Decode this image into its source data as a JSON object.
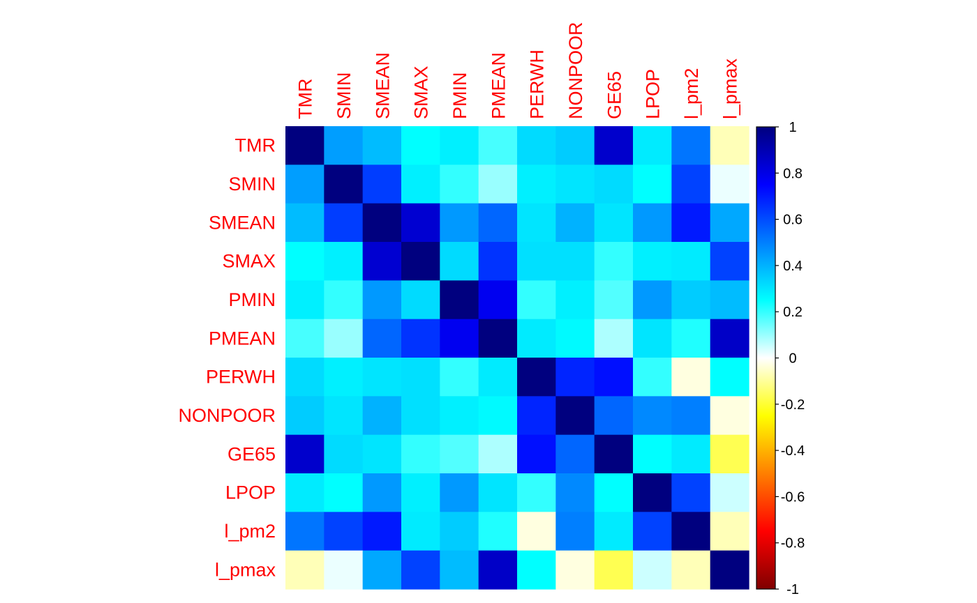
{
  "chart_data": {
    "type": "heatmap",
    "title": "",
    "xlabel": "",
    "ylabel": "",
    "variables": [
      "TMR",
      "SMIN",
      "SMEAN",
      "SMAX",
      "PMIN",
      "PMEAN",
      "PERWH",
      "NONPOOR",
      "GE65",
      "LPOP",
      "l_pm2",
      "l_pmax"
    ],
    "matrix": [
      [
        1.0,
        0.44,
        0.38,
        0.25,
        0.28,
        0.18,
        0.32,
        0.35,
        0.85,
        0.29,
        0.52,
        -0.07
      ],
      [
        0.44,
        1.0,
        0.63,
        0.28,
        0.2,
        0.1,
        0.28,
        0.3,
        0.32,
        0.25,
        0.62,
        0.02
      ],
      [
        0.38,
        0.63,
        1.0,
        0.84,
        0.45,
        0.55,
        0.3,
        0.4,
        0.3,
        0.45,
        0.7,
        0.42
      ],
      [
        0.25,
        0.28,
        0.84,
        1.0,
        0.32,
        0.65,
        0.31,
        0.31,
        0.2,
        0.28,
        0.29,
        0.62
      ],
      [
        0.28,
        0.2,
        0.45,
        0.32,
        1.0,
        0.78,
        0.2,
        0.28,
        0.17,
        0.45,
        0.35,
        0.38
      ],
      [
        0.18,
        0.1,
        0.55,
        0.65,
        0.78,
        1.0,
        0.29,
        0.26,
        0.08,
        0.3,
        0.22,
        0.86
      ],
      [
        0.32,
        0.28,
        0.3,
        0.31,
        0.2,
        0.29,
        1.0,
        0.68,
        0.72,
        0.2,
        -0.03,
        0.25
      ],
      [
        0.35,
        0.3,
        0.4,
        0.31,
        0.28,
        0.26,
        0.68,
        1.0,
        0.55,
        0.48,
        0.5,
        -0.03
      ],
      [
        0.85,
        0.32,
        0.3,
        0.2,
        0.17,
        0.08,
        0.72,
        0.55,
        1.0,
        0.25,
        0.29,
        -0.17
      ],
      [
        0.29,
        0.25,
        0.45,
        0.28,
        0.45,
        0.3,
        0.2,
        0.48,
        0.25,
        1.0,
        0.62,
        0.05
      ],
      [
        0.52,
        0.62,
        0.7,
        0.29,
        0.35,
        0.22,
        -0.03,
        0.5,
        0.29,
        0.62,
        1.0,
        -0.07
      ],
      [
        -0.07,
        0.02,
        0.42,
        0.62,
        0.38,
        0.86,
        0.25,
        -0.03,
        -0.17,
        0.05,
        -0.07,
        1.0
      ]
    ],
    "color_scale": {
      "min": -1,
      "max": 1,
      "ticks": [
        1,
        0.8,
        0.6,
        0.4,
        0.2,
        0,
        -0.2,
        -0.4,
        -0.6,
        -0.8,
        -1
      ],
      "tick_labels": [
        "1",
        "0.8",
        "0.6",
        "0.4",
        "0.2",
        "0",
        "-0.2",
        "-0.4",
        "-0.6",
        "-0.8",
        "-1"
      ],
      "stops": [
        {
          "value": -1.0,
          "color": "#7f0000"
        },
        {
          "value": -0.75,
          "color": "#ff0000"
        },
        {
          "value": -0.5,
          "color": "#ff7f00"
        },
        {
          "value": -0.25,
          "color": "#ffff00"
        },
        {
          "value": 0.0,
          "color": "#ffffff"
        },
        {
          "value": 0.25,
          "color": "#00ffff"
        },
        {
          "value": 0.5,
          "color": "#007fff"
        },
        {
          "value": 0.75,
          "color": "#0000ff"
        },
        {
          "value": 1.0,
          "color": "#00007f"
        }
      ]
    },
    "label_color": "#ff0000",
    "grid": false,
    "legend": "right"
  }
}
